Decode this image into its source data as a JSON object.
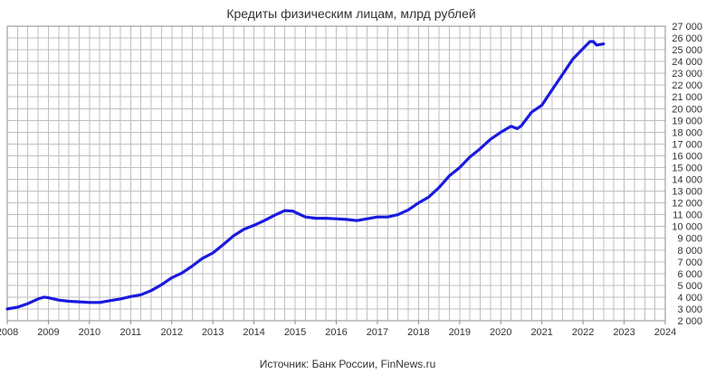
{
  "chart_data": {
    "type": "line",
    "title": "Кредиты физическим лицам, млрд рублей",
    "source": "Источник: Банк России, FinNews.ru",
    "xlabel": "",
    "ylabel": "",
    "xlim": [
      2008,
      2024
    ],
    "ylim": [
      2000,
      27000
    ],
    "x_ticks": [
      2008,
      2009,
      2010,
      2011,
      2012,
      2013,
      2014,
      2015,
      2016,
      2017,
      2018,
      2019,
      2020,
      2021,
      2022,
      2023,
      2024
    ],
    "x_tick_labels": [
      "2008",
      "2009",
      "2010",
      "2011",
      "2012",
      "2013",
      "2014",
      "2015",
      "2016",
      "2017",
      "2018",
      "2019",
      "2020",
      "2021",
      "2022",
      "2023",
      "2024"
    ],
    "y_ticks": [
      2000,
      3000,
      4000,
      5000,
      6000,
      7000,
      8000,
      9000,
      10000,
      11000,
      12000,
      13000,
      14000,
      15000,
      16000,
      17000,
      18000,
      19000,
      20000,
      21000,
      22000,
      23000,
      24000,
      25000,
      26000,
      27000
    ],
    "y_tick_labels": [
      "2 000",
      "3 000",
      "4 000",
      "5 000",
      "6 000",
      "7 000",
      "8 000",
      "9 000",
      "10 000",
      "11 000",
      "12 000",
      "13 000",
      "14 000",
      "15 000",
      "16 000",
      "17 000",
      "18 000",
      "19 000",
      "20 000",
      "21 000",
      "22 000",
      "23 000",
      "24 000",
      "25 000",
      "26 000",
      "27 000"
    ],
    "grid": true,
    "minor_x_grid_per_year": 4,
    "line_color": "#1a1adf",
    "grid_color": "#bfbfbf",
    "series": [
      {
        "x": [
          2008.0,
          2008.25,
          2008.5,
          2008.75,
          2008.9,
          2009.0,
          2009.25,
          2009.5,
          2009.75,
          2010.0,
          2010.25,
          2010.5,
          2010.75,
          2011.0,
          2011.25,
          2011.5,
          2011.75,
          2012.0,
          2012.25,
          2012.5,
          2012.75,
          2013.0,
          2013.25,
          2013.5,
          2013.75,
          2014.0,
          2014.25,
          2014.5,
          2014.75,
          2014.95,
          2015.0,
          2015.25,
          2015.5,
          2015.75,
          2016.0,
          2016.25,
          2016.5,
          2016.75,
          2017.0,
          2017.25,
          2017.5,
          2017.75,
          2018.0,
          2018.25,
          2018.5,
          2018.75,
          2019.0,
          2019.25,
          2019.5,
          2019.75,
          2020.0,
          2020.25,
          2020.4,
          2020.5,
          2020.75,
          2021.0,
          2021.25,
          2021.5,
          2021.75,
          2022.0,
          2022.17,
          2022.25,
          2022.33,
          2022.5
        ],
        "values": [
          3000,
          3150,
          3450,
          3850,
          4000,
          3950,
          3750,
          3650,
          3600,
          3550,
          3550,
          3700,
          3850,
          4050,
          4200,
          4550,
          5050,
          5650,
          6050,
          6650,
          7300,
          7750,
          8450,
          9200,
          9750,
          10100,
          10500,
          10950,
          11350,
          11300,
          11200,
          10800,
          10700,
          10700,
          10650,
          10600,
          10500,
          10650,
          10800,
          10800,
          11000,
          11400,
          12000,
          12500,
          13300,
          14300,
          15000,
          15900,
          16600,
          17400,
          18000,
          18500,
          18300,
          18550,
          19700,
          20300,
          21600,
          22900,
          24200,
          25100,
          25700,
          25700,
          25400,
          25500
        ]
      }
    ]
  }
}
